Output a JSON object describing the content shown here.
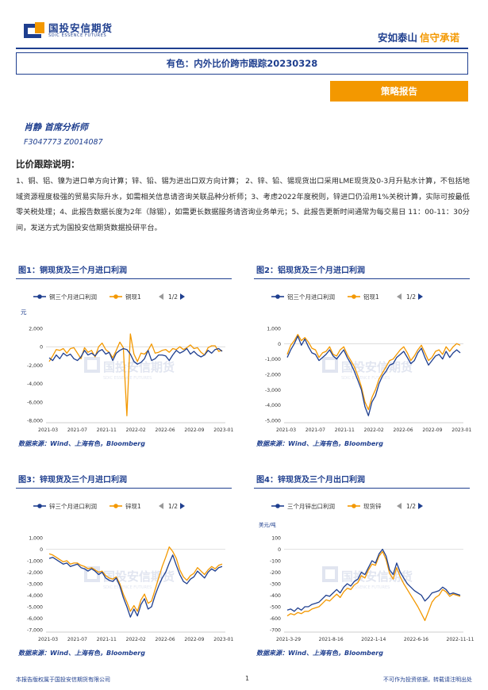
{
  "header": {
    "logo_cn": "国投安信期货",
    "logo_en": "SDIC ESSENCE FUTURES",
    "slogan_1": "安如泰山",
    "slogan_2": "信守承诺",
    "title": "有色：内外比价跨市跟踪20230328",
    "tag": "策略报告"
  },
  "author": {
    "name": "肖静 首席分析师",
    "ids": "F3047773 Z0014087"
  },
  "section": {
    "title": "比价跟踪说明：",
    "body": "1、铜、铝、镍为进口单方向计算；锌、铅、锡为进出口双方向计算； 2、锌、铅、锡现货出口采用LME现货及0-3月升贴水计算，不包括地域资源程度极强的贸易实际升水，如需相关信息请咨询关联品种分析师；3、考虑2022年度税则，锌进口仍沿用1%关税计算，实际可按最低零关税处理；4、此报告数据长度为2年（除锡），如需更长数据服务请咨询业务单元；5、此报告更新时间通常为每交易日 11：00-11：30分间，发送方式为国投安信期货数据投研平台。"
  },
  "watermark": {
    "cn": "国投安信期货",
    "en": "SDIC ESSENCE FUTURES"
  },
  "colors": {
    "brand_blue": "#1f3f8f",
    "brand_orange": "#f39800",
    "series_blue": "#1f3f8f",
    "series_orange": "#f39800"
  },
  "figures": [
    {
      "title": "图1：铜现货及三个月进口利润",
      "source": "数据来源：Wind、上海有色，Bloomberg",
      "legend_page": "1/2",
      "unit": "元",
      "chart_data": {
        "type": "line",
        "ylim": [
          -8000,
          2000
        ],
        "yticks": [
          2000,
          0,
          -2000,
          -4000,
          -6000,
          -8000
        ],
        "ytick_labels": [
          "2,000",
          "0",
          "-2,000",
          "-4,000",
          "-6,000",
          "-8,000"
        ],
        "xtick_labels": [
          "2021-03",
          "2021-07",
          "2021-11",
          "2022-02",
          "2022-06",
          "2022-09",
          "2023-01"
        ],
        "grid": false,
        "series": [
          {
            "name": "铜三个月进口利润",
            "color": "#1f3f8f",
            "values": [
              -1200,
              -1500,
              -900,
              -1300,
              -700,
              -1000,
              -800,
              -1300,
              -1500,
              -1100,
              -400,
              -900,
              -700,
              -1000,
              -500,
              -300,
              -800,
              -600,
              -1500,
              -700,
              -400,
              -200,
              -300,
              -800,
              -1600,
              -1900,
              -1700,
              -1300,
              -400,
              -1500,
              -1300,
              -900,
              -900,
              -1000,
              -1500,
              -900,
              -400,
              -700,
              -500,
              -200,
              -800,
              -500,
              -900,
              -1100,
              -900,
              -400,
              -700,
              -300,
              -200,
              -500
            ]
          },
          {
            "name": "铜现1",
            "color": "#f39800",
            "values": [
              -1600,
              -1000,
              -300,
              -400,
              -200,
              -700,
              -200,
              -100,
              -700,
              -1300,
              -100,
              -600,
              -400,
              -1100,
              0,
              400,
              -300,
              -600,
              -1200,
              -400,
              500,
              -100,
              -7500,
              1400,
              -800,
              -1600,
              -700,
              -800,
              -400,
              300,
              -700,
              -600,
              -400,
              -300,
              -600,
              -200,
              -300,
              0,
              -300,
              -100,
              200,
              -200,
              -100,
              -600,
              -900,
              -100,
              100,
              100,
              -500,
              -400
            ]
          }
        ]
      }
    },
    {
      "title": "图2：铝现货及三个月进口利润",
      "source": "数据来源：Wind、上海有色，Bloomberg",
      "legend_page": "1/2",
      "unit": "",
      "chart_data": {
        "type": "line",
        "ylim": [
          -5000,
          1000
        ],
        "yticks": [
          1000,
          0,
          -1000,
          -2000,
          -3000,
          -4000,
          -5000
        ],
        "ytick_labels": [
          "1,000",
          "0",
          "-1,000",
          "-2,000",
          "-3,000",
          "-4,000",
          "-5,000"
        ],
        "xtick_labels": [
          "2021-03",
          "2021-07",
          "2021-11",
          "2022-02",
          "2022-06",
          "2022-09",
          "2023-01"
        ],
        "grid": false,
        "series": [
          {
            "name": "铝三个月进口利润",
            "color": "#1f3f8f",
            "values": [
              -900,
              -400,
              0,
              500,
              -100,
              300,
              -200,
              -600,
              -700,
              -1100,
              -900,
              -700,
              -400,
              -800,
              -1000,
              -700,
              -400,
              -900,
              -1300,
              -1800,
              -2400,
              -3000,
              -4100,
              -4700,
              -3800,
              -3400,
              -2600,
              -2100,
              -1800,
              -1400,
              -1300,
              -900,
              -700,
              -500,
              -900,
              -1300,
              -1100,
              -600,
              -300,
              -900,
              -1400,
              -1100,
              -800,
              -700,
              -1000,
              -500,
              -900,
              -600,
              -400,
              -600
            ]
          },
          {
            "name": "铝现1",
            "color": "#f39800",
            "values": [
              -700,
              -100,
              200,
              600,
              200,
              400,
              100,
              -300,
              -400,
              -900,
              -600,
              -500,
              -200,
              -700,
              -800,
              -400,
              -200,
              -700,
              -1100,
              -1500,
              -2100,
              -2800,
              -3800,
              -4300,
              -3500,
              -3000,
              -2300,
              -1900,
              -1500,
              -1100,
              -1000,
              -700,
              -400,
              -200,
              -600,
              -1100,
              -800,
              -400,
              -100,
              -600,
              -1100,
              -900,
              -500,
              -400,
              -700,
              -200,
              -500,
              -200,
              0,
              -100
            ]
          }
        ]
      }
    },
    {
      "title": "图3：锌现货及三个月进口利润",
      "source": "数据来源：Wind、上海有色，Bloomberg",
      "legend_page": "1/2",
      "unit": "",
      "chart_data": {
        "type": "line",
        "ylim": [
          -7000,
          1000
        ],
        "yticks": [
          1000,
          0,
          -1000,
          -2000,
          -3000,
          -4000,
          -5000,
          -6000,
          -7000
        ],
        "ytick_labels": [
          "1,000",
          "0",
          "-1,000",
          "-2,000",
          "-3,000",
          "-4,000",
          "-5,000",
          "-6,000",
          "-7,000"
        ],
        "xtick_labels": [
          "2021-03",
          "2021-07",
          "2021-11",
          "2022-02",
          "2022-06",
          "2022-09",
          "2023-01"
        ],
        "grid": false,
        "series": [
          {
            "name": "锌三个月进口利润",
            "color": "#1f3f8f",
            "values": [
              -800,
              -700,
              -900,
              -1100,
              -1300,
              -1200,
              -1500,
              -1400,
              -1300,
              -1600,
              -1700,
              -1900,
              -1700,
              -1900,
              -2200,
              -2000,
              -2500,
              -2700,
              -2800,
              -2500,
              -3200,
              -4200,
              -5000,
              -5900,
              -5200,
              -5800,
              -4800,
              -4300,
              -5200,
              -5000,
              -4000,
              -3200,
              -2500,
              -2000,
              -1200,
              -500,
              -1400,
              -2200,
              -2800,
              -3000,
              -2600,
              -2400,
              -1900,
              -2200,
              -2500,
              -2000,
              -1700,
              -1900,
              -1600,
              -1500
            ]
          },
          {
            "name": "锌现1",
            "color": "#f39800",
            "values": [
              -400,
              -500,
              -700,
              -900,
              -1100,
              -1000,
              -1300,
              -1200,
              -1200,
              -1400,
              -1500,
              -1700,
              -1600,
              -1800,
              -2000,
              -1900,
              -2300,
              -2500,
              -2600,
              -2400,
              -3000,
              -3900,
              -4600,
              -5400,
              -4900,
              -5400,
              -4400,
              -3900,
              -4700,
              -4500,
              -3500,
              -2500,
              -1500,
              -700,
              200,
              -200,
              -800,
              -1800,
              -2400,
              -2700,
              -2300,
              -2100,
              -1600,
              -1900,
              -2200,
              -1800,
              -1500,
              -1700,
              -1400,
              -1300
            ]
          }
        ]
      }
    },
    {
      "title": "图4：锌现货及三个月出口利润",
      "source": "数据来源：Wind、上海有色，Bloomberg",
      "legend_page": "1/2",
      "unit": "美元/吨",
      "chart_data": {
        "type": "line",
        "ylim": [
          -700,
          100
        ],
        "yticks": [
          100,
          0,
          -100,
          -200,
          -300,
          -400,
          -500,
          -600,
          -700
        ],
        "ytick_labels": [
          "100",
          "0",
          "-100",
          "-200",
          "-300",
          "-400",
          "-500",
          "-600",
          "-700"
        ],
        "xtick_labels": [
          "2021-3-29",
          "2021-8-16",
          "2022-1-14",
          "2022-6-16",
          "2022-11-11"
        ],
        "grid": false,
        "series": [
          {
            "name": "三个月锌出口利润",
            "color": "#1f3f8f",
            "values": [
              -530,
              -520,
              -540,
              -510,
              -530,
              -500,
              -500,
              -480,
              -470,
              -460,
              -430,
              -400,
              -410,
              -380,
              -350,
              -380,
              -330,
              -300,
              -320,
              -280,
              -260,
              -200,
              -220,
              -160,
              -100,
              -120,
              -40,
              0,
              -60,
              -180,
              -220,
              -120,
              -200,
              -250,
              -300,
              -330,
              -360,
              -380,
              -400,
              -450,
              -420,
              -380,
              -370,
              -360,
              -330,
              -350,
              -390,
              -380,
              -390,
              -400
            ]
          },
          {
            "name": "现货锌",
            "color": "#f39800",
            "values": [
              -580,
              -560,
              -570,
              -550,
              -560,
              -540,
              -540,
              -520,
              -510,
              -500,
              -470,
              -440,
              -450,
              -420,
              -390,
              -420,
              -370,
              -340,
              -350,
              -310,
              -290,
              -230,
              -250,
              -180,
              -130,
              -140,
              -60,
              -20,
              -90,
              -210,
              -260,
              -160,
              -240,
              -300,
              -350,
              -400,
              -450,
              -500,
              -560,
              -620,
              -540,
              -460,
              -420,
              -400,
              -350,
              -370,
              -410,
              -390,
              -400,
              -410
            ]
          }
        ]
      }
    }
  ],
  "footer": {
    "left": "本报告版权属于国投安信期货有限公司",
    "page": "1",
    "right": "不可作为投资依据，转载请注明出处"
  }
}
